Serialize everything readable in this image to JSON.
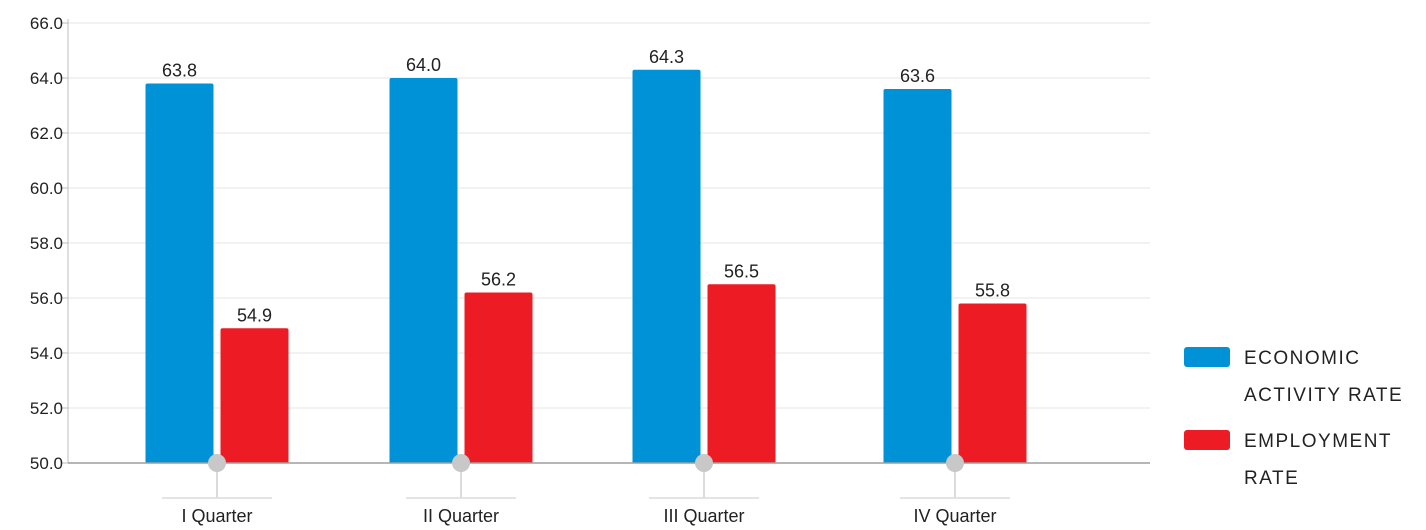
{
  "chart_data": {
    "type": "bar",
    "categories": [
      "I Quarter",
      "II Quarter",
      "III Quarter",
      "IV Quarter"
    ],
    "series": [
      {
        "name": "ECONOMIC ACTIVITY RATE",
        "legend_lines": [
          "ECONOMIC",
          "ACTIVITY RATE"
        ],
        "color": "#0092d6",
        "values": [
          63.8,
          64.0,
          64.3,
          63.6
        ]
      },
      {
        "name": "EMPLOYMENT RATE",
        "legend_lines": [
          "EMPLOYMENT",
          "RATE"
        ],
        "color": "#ed1c24",
        "values": [
          54.9,
          56.2,
          56.5,
          55.8
        ]
      }
    ],
    "ylim": [
      50,
      66
    ],
    "yticks": [
      "50.0",
      "52.0",
      "54.0",
      "56.0",
      "58.0",
      "60.0",
      "62.0",
      "64.0",
      "66.0"
    ],
    "title": "",
    "xlabel": "",
    "ylabel": "",
    "grid": true,
    "legend_position": "right"
  }
}
